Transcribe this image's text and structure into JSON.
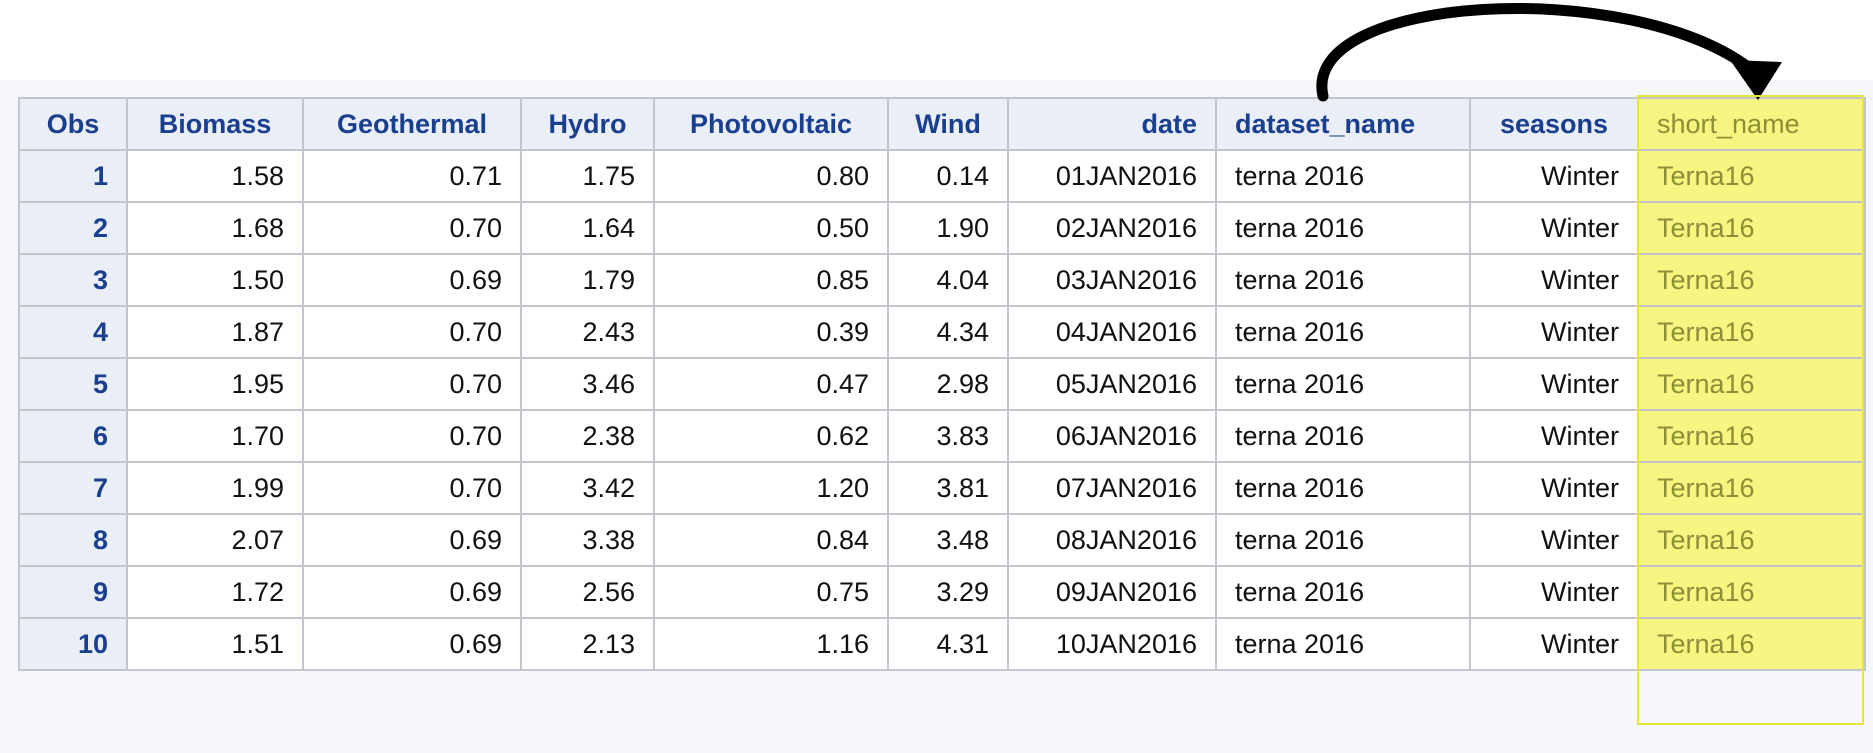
{
  "table": {
    "headers": [
      "Obs",
      "Biomass",
      "Geothermal",
      "Hydro",
      "Photovoltaic",
      "Wind",
      "date",
      "dataset_name",
      "seasons",
      "short_name"
    ],
    "rows": [
      {
        "obs": "1",
        "biomass": "1.58",
        "geothermal": "0.71",
        "hydro": "1.75",
        "photovoltaic": "0.80",
        "wind": "0.14",
        "date": "01JAN2016",
        "dataset_name": "terna 2016",
        "seasons": "Winter",
        "short_name": "Terna16"
      },
      {
        "obs": "2",
        "biomass": "1.68",
        "geothermal": "0.70",
        "hydro": "1.64",
        "photovoltaic": "0.50",
        "wind": "1.90",
        "date": "02JAN2016",
        "dataset_name": "terna 2016",
        "seasons": "Winter",
        "short_name": "Terna16"
      },
      {
        "obs": "3",
        "biomass": "1.50",
        "geothermal": "0.69",
        "hydro": "1.79",
        "photovoltaic": "0.85",
        "wind": "4.04",
        "date": "03JAN2016",
        "dataset_name": "terna 2016",
        "seasons": "Winter",
        "short_name": "Terna16"
      },
      {
        "obs": "4",
        "biomass": "1.87",
        "geothermal": "0.70",
        "hydro": "2.43",
        "photovoltaic": "0.39",
        "wind": "4.34",
        "date": "04JAN2016",
        "dataset_name": "terna 2016",
        "seasons": "Winter",
        "short_name": "Terna16"
      },
      {
        "obs": "5",
        "biomass": "1.95",
        "geothermal": "0.70",
        "hydro": "3.46",
        "photovoltaic": "0.47",
        "wind": "2.98",
        "date": "05JAN2016",
        "dataset_name": "terna 2016",
        "seasons": "Winter",
        "short_name": "Terna16"
      },
      {
        "obs": "6",
        "biomass": "1.70",
        "geothermal": "0.70",
        "hydro": "2.38",
        "photovoltaic": "0.62",
        "wind": "3.83",
        "date": "06JAN2016",
        "dataset_name": "terna 2016",
        "seasons": "Winter",
        "short_name": "Terna16"
      },
      {
        "obs": "7",
        "biomass": "1.99",
        "geothermal": "0.70",
        "hydro": "3.42",
        "photovoltaic": "1.20",
        "wind": "3.81",
        "date": "07JAN2016",
        "dataset_name": "terna 2016",
        "seasons": "Winter",
        "short_name": "Terna16"
      },
      {
        "obs": "8",
        "biomass": "2.07",
        "geothermal": "0.69",
        "hydro": "3.38",
        "photovoltaic": "0.84",
        "wind": "3.48",
        "date": "08JAN2016",
        "dataset_name": "terna 2016",
        "seasons": "Winter",
        "short_name": "Terna16"
      },
      {
        "obs": "9",
        "biomass": "1.72",
        "geothermal": "0.69",
        "hydro": "2.56",
        "photovoltaic": "0.75",
        "wind": "3.29",
        "date": "09JAN2016",
        "dataset_name": "terna 2016",
        "seasons": "Winter",
        "short_name": "Terna16"
      },
      {
        "obs": "10",
        "biomass": "1.51",
        "geothermal": "0.69",
        "hydro": "2.13",
        "photovoltaic": "1.16",
        "wind": "4.31",
        "date": "10JAN2016",
        "dataset_name": "terna 2016",
        "seasons": "Winter",
        "short_name": "Terna16"
      }
    ]
  },
  "highlight": {
    "column": "short_name",
    "fill_color": "#f6f582",
    "text_color": "#8d8f35"
  },
  "annotation": {
    "icon": "curved-arrow-icon",
    "from_column": "dataset_name",
    "to_column": "short_name",
    "color": "#000000"
  },
  "colors": {
    "header_background": "#e9eef7",
    "header_text": "#1a3f8f",
    "grid_line": "#c2c6cc",
    "panel_background": "#f5f7fb"
  }
}
